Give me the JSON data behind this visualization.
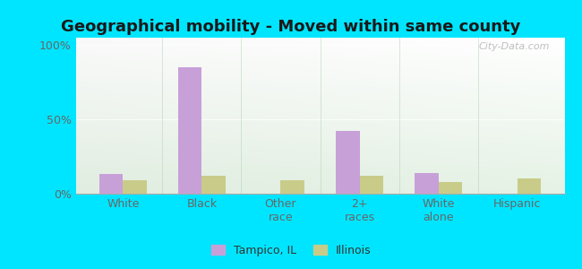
{
  "title": "Geographical mobility - Moved within same county",
  "categories": [
    "White",
    "Black",
    "Other\nrace",
    "2+\nraces",
    "White\nalone",
    "Hispanic"
  ],
  "tampico_values": [
    13,
    85,
    0,
    42,
    14,
    0
  ],
  "illinois_values": [
    9,
    12,
    9,
    12,
    8,
    10
  ],
  "tampico_color": "#c8a0d8",
  "illinois_color": "#c8cc88",
  "bar_width": 0.3,
  "ylim": [
    0,
    105
  ],
  "yticks": [
    0,
    50,
    100
  ],
  "ytick_labels": [
    "0%",
    "50%",
    "100%"
  ],
  "background_outer": "#00e5ff",
  "legend_tampico": "Tampico, IL",
  "legend_illinois": "Illinois",
  "watermark": "City-Data.com",
  "title_fontsize": 13,
  "tick_fontsize": 9
}
